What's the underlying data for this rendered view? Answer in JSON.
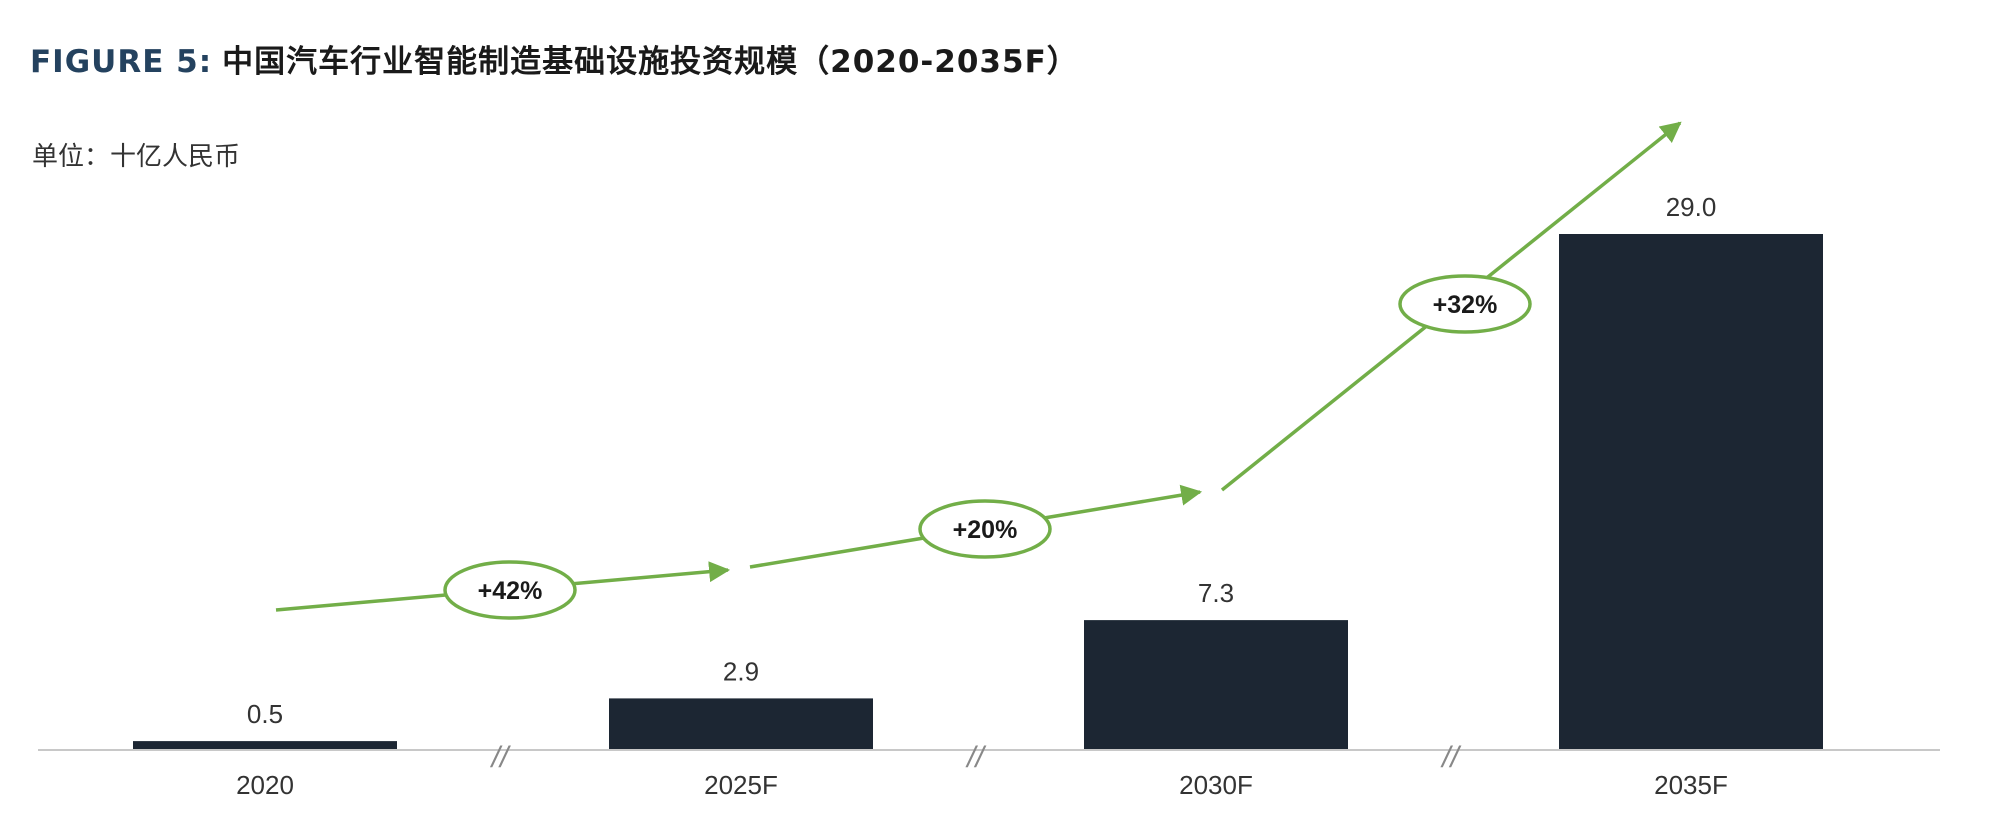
{
  "title_prefix": "FIGURE 5:",
  "title_text": "中国汽车行业智能制造基础设施投资规模（2020-2035F）",
  "unit_label": "单位：十亿人民币",
  "colors": {
    "bar": "#1c2633",
    "arrow": "#72ae48",
    "title_prefix": "#24425f",
    "axis": "#c8c8c8",
    "text": "#333333"
  },
  "chart_data": {
    "type": "bar",
    "categories": [
      "2020",
      "2025F",
      "2030F",
      "2035F"
    ],
    "values": [
      0.5,
      2.9,
      7.3,
      29.0
    ],
    "value_labels": [
      "0.5",
      "2.9",
      "7.3",
      "29.0"
    ],
    "title": "中国汽车行业智能制造基础设施投资规模（2020-2035F）",
    "ylabel": "单位：十亿人民币",
    "ylim": [
      0,
      29.0
    ],
    "axis_break_marker": "//",
    "growth_annotations": [
      "+42%",
      "+20%",
      "+32%"
    ]
  }
}
